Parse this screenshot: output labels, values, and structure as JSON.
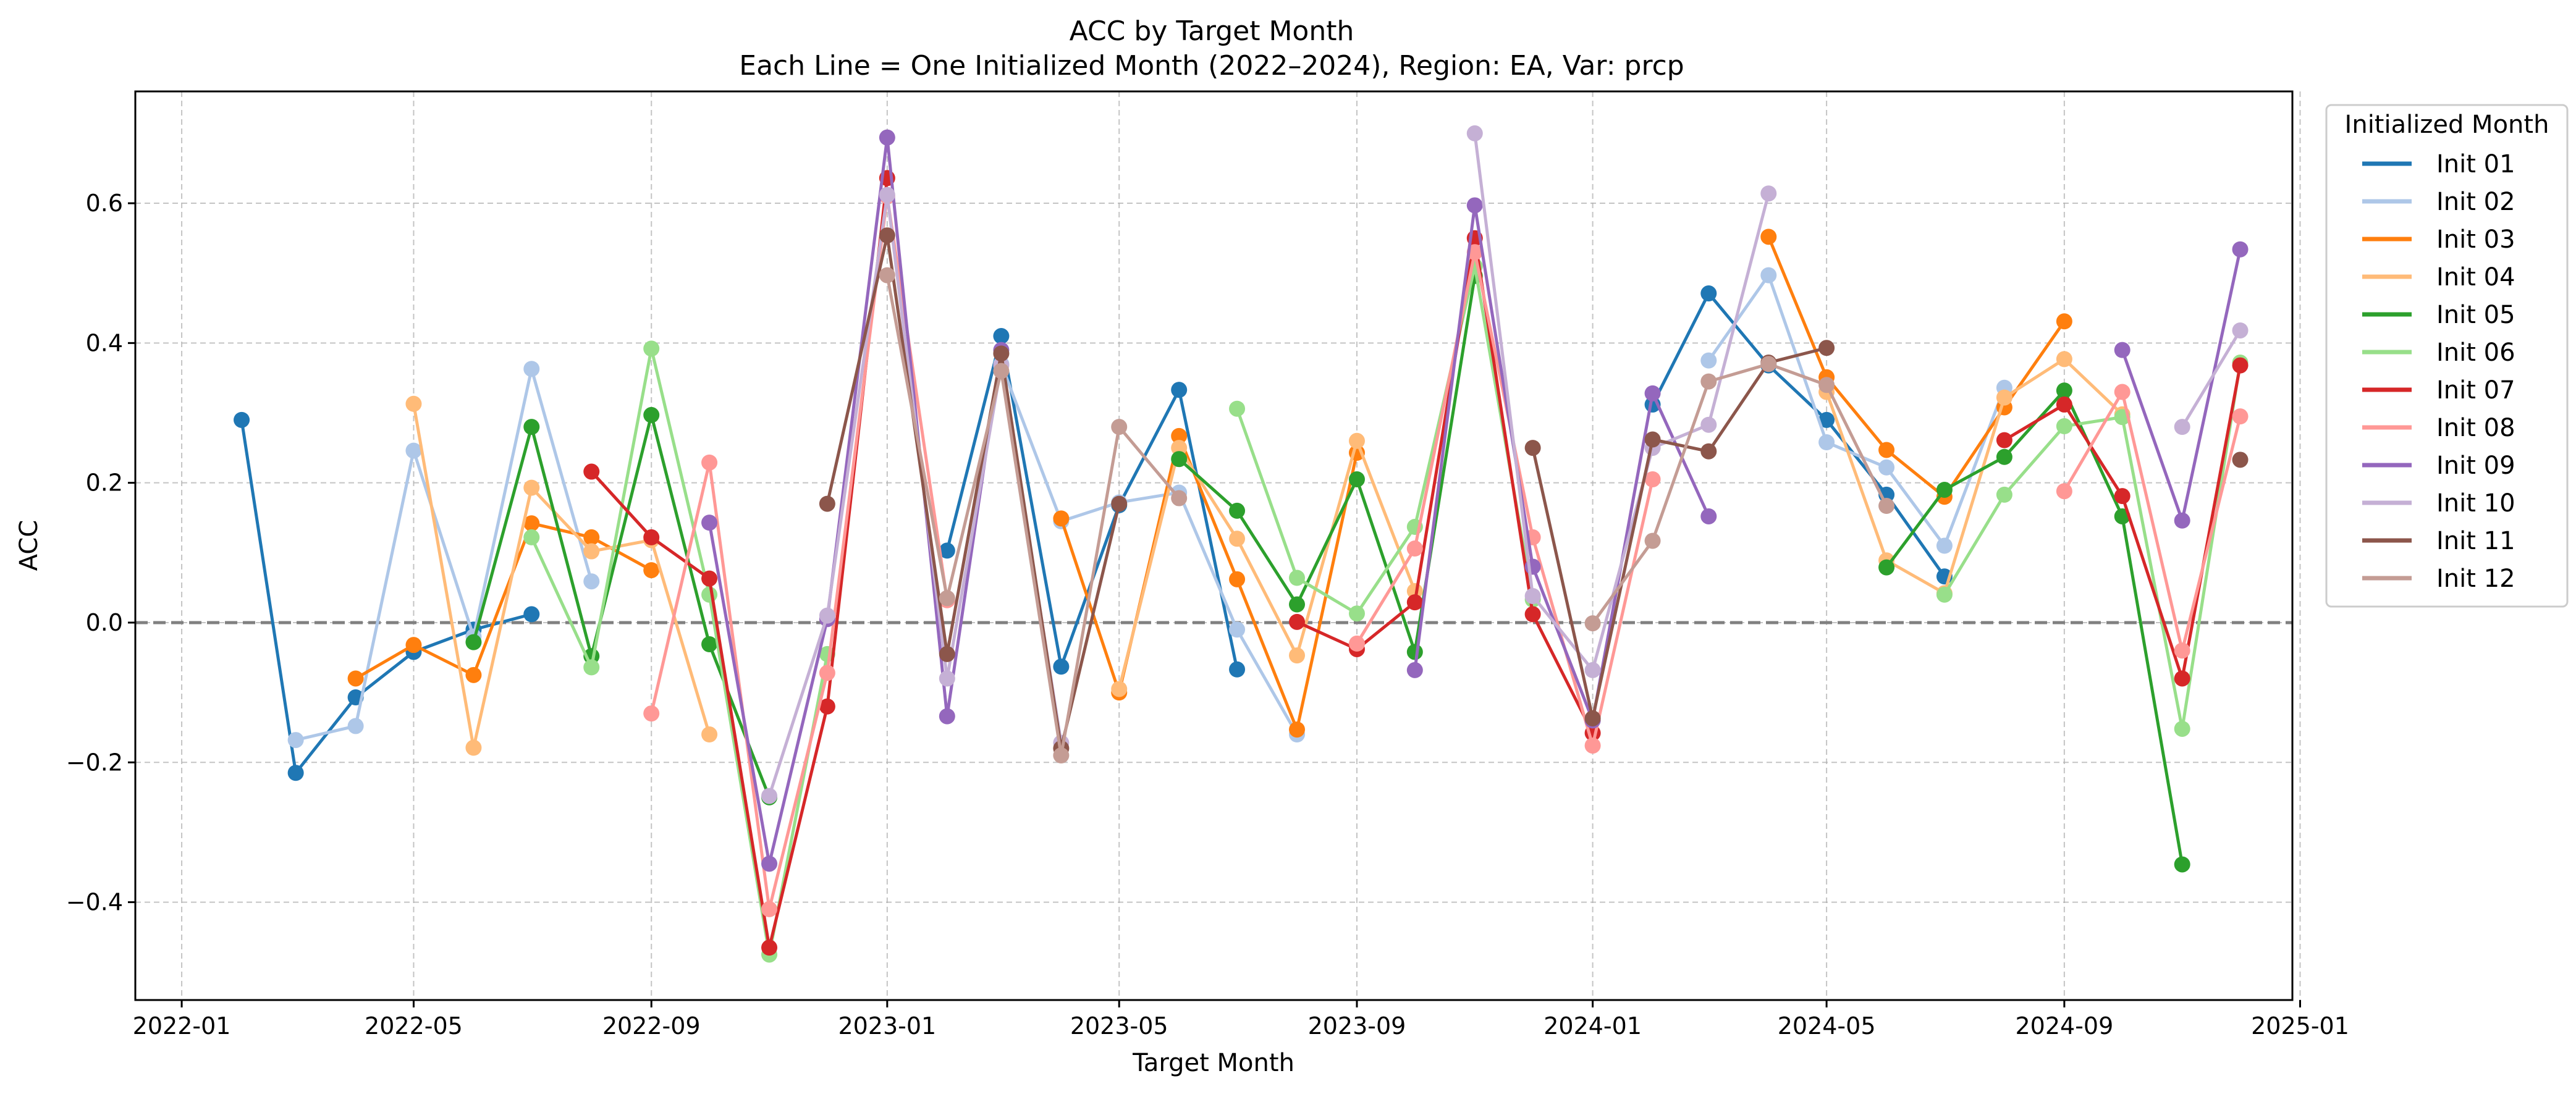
{
  "chart_data": {
    "type": "line",
    "title": "ACC by Target Month",
    "subtitle": "Each Line = One Initialized Month (2022–2024), Region: EA, Var: prcp",
    "xlabel": "Target Month",
    "ylabel": "ACC",
    "x_ticks": [
      "2022-01",
      "2022-05",
      "2022-09",
      "2023-01",
      "2023-05",
      "2023-09",
      "2024-01",
      "2024-05",
      "2024-09",
      "2025-01"
    ],
    "y_ticks": [
      "−0.4",
      "−0.2",
      "0.0",
      "0.2",
      "0.4",
      "0.6"
    ],
    "xlim": [
      "2021-12-08",
      "2024-12-28"
    ],
    "ylim": [
      -0.54,
      0.76
    ],
    "reference_line": 0.0,
    "grid": true,
    "legend_title": "Initialized Month",
    "legend_position": "outside right, top",
    "series": [
      {
        "name": "Init 01",
        "color": "#1f77b4",
        "segments": [
          [
            [
              "2022-02-01",
              0.29
            ],
            [
              "2022-03-01",
              -0.215
            ],
            [
              "2022-04-01",
              -0.107
            ],
            [
              "2022-05-01",
              -0.042
            ],
            [
              "2022-06-01",
              -0.01
            ],
            [
              "2022-07-01",
              0.012
            ]
          ],
          [
            [
              "2023-02-01",
              0.103
            ],
            [
              "2023-03-01",
              0.41
            ],
            [
              "2023-04-01",
              -0.063
            ],
            [
              "2023-05-01",
              0.168
            ],
            [
              "2023-06-01",
              0.333
            ],
            [
              "2023-07-01",
              -0.067
            ]
          ],
          [
            [
              "2024-02-01",
              0.312
            ],
            [
              "2024-03-01",
              0.471
            ],
            [
              "2024-04-01",
              0.368
            ],
            [
              "2024-05-01",
              0.29
            ],
            [
              "2024-06-01",
              0.183
            ],
            [
              "2024-07-01",
              0.066
            ]
          ]
        ]
      },
      {
        "name": "Init 02",
        "color": "#aec7e8",
        "segments": [
          [
            [
              "2022-03-01",
              -0.168
            ],
            [
              "2022-04-01",
              -0.148
            ],
            [
              "2022-05-01",
              0.246
            ],
            [
              "2022-06-01",
              -0.02
            ],
            [
              "2022-07-01",
              0.363
            ],
            [
              "2022-08-01",
              0.059
            ]
          ],
          [
            [
              "2023-03-01",
              0.37
            ],
            [
              "2023-04-01",
              0.145
            ],
            [
              "2023-05-01",
              0.172
            ],
            [
              "2023-06-01",
              0.186
            ],
            [
              "2023-07-01",
              -0.01
            ],
            [
              "2023-08-01",
              -0.16
            ]
          ],
          [
            [
              "2024-03-01",
              0.375
            ],
            [
              "2024-04-01",
              0.497
            ],
            [
              "2024-05-01",
              0.258
            ],
            [
              "2024-06-01",
              0.222
            ],
            [
              "2024-07-01",
              0.11
            ],
            [
              "2024-08-01",
              0.336
            ]
          ]
        ]
      },
      {
        "name": "Init 03",
        "color": "#ff7f0e",
        "segments": [
          [
            [
              "2022-04-01",
              -0.08
            ],
            [
              "2022-05-01",
              -0.032
            ],
            [
              "2022-06-01",
              -0.075
            ],
            [
              "2022-07-01",
              0.142
            ],
            [
              "2022-08-01",
              0.122
            ],
            [
              "2022-09-01",
              0.075
            ]
          ],
          [
            [
              "2023-04-01",
              0.149
            ],
            [
              "2023-05-01",
              -0.1
            ],
            [
              "2023-06-01",
              0.267
            ],
            [
              "2023-07-01",
              0.062
            ],
            [
              "2023-08-01",
              -0.153
            ],
            [
              "2023-09-01",
              0.243
            ]
          ],
          [
            [
              "2024-04-01",
              0.552
            ],
            [
              "2024-05-01",
              0.351
            ],
            [
              "2024-06-01",
              0.247
            ],
            [
              "2024-07-01",
              0.18
            ],
            [
              "2024-08-01",
              0.308
            ],
            [
              "2024-09-01",
              0.431
            ]
          ]
        ]
      },
      {
        "name": "Init 04",
        "color": "#ffbb78",
        "segments": [
          [
            [
              "2022-05-01",
              0.313
            ],
            [
              "2022-06-01",
              -0.179
            ],
            [
              "2022-07-01",
              0.193
            ],
            [
              "2022-08-01",
              0.102
            ],
            [
              "2022-09-01",
              0.118
            ],
            [
              "2022-10-01",
              -0.16
            ]
          ],
          [
            [
              "2023-05-01",
              -0.095
            ],
            [
              "2023-06-01",
              0.25
            ],
            [
              "2023-07-01",
              0.12
            ],
            [
              "2023-08-01",
              -0.047
            ],
            [
              "2023-09-01",
              0.26
            ],
            [
              "2023-10-01",
              0.045
            ]
          ],
          [
            [
              "2024-05-01",
              0.33
            ],
            [
              "2024-06-01",
              0.089
            ],
            [
              "2024-07-01",
              0.042
            ],
            [
              "2024-08-01",
              0.322
            ],
            [
              "2024-09-01",
              0.377
            ],
            [
              "2024-10-01",
              0.298
            ]
          ]
        ]
      },
      {
        "name": "Init 05",
        "color": "#2ca02c",
        "segments": [
          [
            [
              "2022-06-01",
              -0.028
            ],
            [
              "2022-07-01",
              0.28
            ],
            [
              "2022-08-01",
              -0.048
            ],
            [
              "2022-09-01",
              0.297
            ],
            [
              "2022-10-01",
              -0.031
            ],
            [
              "2022-11-01",
              -0.25
            ]
          ],
          [
            [
              "2023-06-01",
              0.234
            ],
            [
              "2023-07-01",
              0.16
            ],
            [
              "2023-08-01",
              0.026
            ],
            [
              "2023-09-01",
              0.205
            ],
            [
              "2023-10-01",
              -0.042
            ],
            [
              "2023-11-01",
              0.496
            ]
          ],
          [
            [
              "2024-06-01",
              0.079
            ],
            [
              "2024-07-01",
              0.19
            ],
            [
              "2024-08-01",
              0.237
            ],
            [
              "2024-09-01",
              0.332
            ],
            [
              "2024-10-01",
              0.152
            ],
            [
              "2024-11-01",
              -0.346
            ]
          ]
        ]
      },
      {
        "name": "Init 06",
        "color": "#98df8a",
        "segments": [
          [
            [
              "2022-07-01",
              0.122
            ],
            [
              "2022-08-01",
              -0.064
            ],
            [
              "2022-09-01",
              0.392
            ],
            [
              "2022-10-01",
              0.04
            ],
            [
              "2022-11-01",
              -0.475
            ],
            [
              "2022-12-01",
              -0.045
            ]
          ],
          [
            [
              "2023-07-01",
              0.306
            ],
            [
              "2023-08-01",
              0.064
            ],
            [
              "2023-09-01",
              0.013
            ],
            [
              "2023-10-01",
              0.137
            ],
            [
              "2023-11-01",
              0.51
            ],
            [
              "2023-12-01",
              0.033
            ]
          ],
          [
            [
              "2024-07-01",
              0.04
            ],
            [
              "2024-08-01",
              0.183
            ],
            [
              "2024-09-01",
              0.281
            ],
            [
              "2024-10-01",
              0.294
            ],
            [
              "2024-11-01",
              -0.152
            ],
            [
              "2024-12-01",
              0.372
            ]
          ]
        ]
      },
      {
        "name": "Init 07",
        "color": "#d62728",
        "segments": [
          [
            [
              "2022-08-01",
              0.216
            ],
            [
              "2022-09-01",
              0.122
            ],
            [
              "2022-10-01",
              0.063
            ],
            [
              "2022-11-01",
              -0.465
            ],
            [
              "2022-12-01",
              -0.12
            ],
            [
              "2023-01-01",
              0.636
            ]
          ],
          [
            [
              "2023-08-01",
              0.001
            ],
            [
              "2023-09-01",
              -0.038
            ],
            [
              "2023-10-01",
              0.029
            ],
            [
              "2023-11-01",
              0.55
            ],
            [
              "2023-12-01",
              0.012
            ],
            [
              "2024-01-01",
              -0.158
            ]
          ],
          [
            [
              "2024-08-01",
              0.261
            ],
            [
              "2024-09-01",
              0.312
            ],
            [
              "2024-10-01",
              0.181
            ],
            [
              "2024-11-01",
              -0.08
            ],
            [
              "2024-12-01",
              0.368
            ]
          ]
        ]
      },
      {
        "name": "Init 08",
        "color": "#ff9896",
        "segments": [
          [
            [
              "2022-09-01",
              -0.13
            ],
            [
              "2022-10-01",
              0.229
            ],
            [
              "2022-11-01",
              -0.41
            ],
            [
              "2022-12-01",
              -0.072
            ],
            [
              "2023-01-01",
              0.61
            ],
            [
              "2023-02-01",
              0.032
            ]
          ],
          [
            [
              "2023-09-01",
              -0.03
            ],
            [
              "2023-10-01",
              0.106
            ],
            [
              "2023-11-01",
              0.53
            ],
            [
              "2023-12-01",
              0.122
            ],
            [
              "2024-01-01",
              -0.176
            ],
            [
              "2024-02-01",
              0.205
            ]
          ],
          [
            [
              "2024-09-01",
              0.188
            ],
            [
              "2024-10-01",
              0.33
            ],
            [
              "2024-11-01",
              -0.04
            ],
            [
              "2024-12-01",
              0.295
            ]
          ]
        ]
      },
      {
        "name": "Init 09",
        "color": "#9467bd",
        "segments": [
          [
            [
              "2022-10-01",
              0.143
            ],
            [
              "2022-11-01",
              -0.345
            ],
            [
              "2022-12-01",
              0.005
            ],
            [
              "2023-01-01",
              0.694
            ],
            [
              "2023-02-01",
              -0.134
            ],
            [
              "2023-03-01",
              0.39
            ]
          ],
          [
            [
              "2023-10-01",
              -0.068
            ],
            [
              "2023-11-01",
              0.597
            ],
            [
              "2023-12-01",
              0.08
            ],
            [
              "2024-01-01",
              -0.14
            ],
            [
              "2024-02-01",
              0.328
            ],
            [
              "2024-03-01",
              0.152
            ]
          ],
          [
            [
              "2024-10-01",
              0.39
            ],
            [
              "2024-11-01",
              0.146
            ],
            [
              "2024-12-01",
              0.534
            ]
          ]
        ]
      },
      {
        "name": "Init 10",
        "color": "#c5b0d5",
        "segments": [
          [
            [
              "2022-11-01",
              -0.248
            ],
            [
              "2022-12-01",
              0.01
            ],
            [
              "2023-01-01",
              0.612
            ],
            [
              "2023-02-01",
              -0.08
            ],
            [
              "2023-03-01",
              0.368
            ],
            [
              "2023-04-01",
              -0.172
            ]
          ],
          [
            [
              "2023-11-01",
              0.7
            ],
            [
              "2023-12-01",
              0.038
            ],
            [
              "2024-01-01",
              -0.068
            ],
            [
              "2024-02-01",
              0.25
            ],
            [
              "2024-03-01",
              0.283
            ],
            [
              "2024-04-01",
              0.614
            ]
          ],
          [
            [
              "2024-11-01",
              0.28
            ],
            [
              "2024-12-01",
              0.418
            ]
          ]
        ]
      },
      {
        "name": "Init 11",
        "color": "#8c564b",
        "segments": [
          [
            [
              "2022-12-01",
              0.17
            ],
            [
              "2023-01-01",
              0.554
            ],
            [
              "2023-02-01",
              -0.045
            ],
            [
              "2023-03-01",
              0.385
            ],
            [
              "2023-04-01",
              -0.18
            ],
            [
              "2023-05-01",
              0.17
            ]
          ],
          [
            [
              "2023-12-01",
              0.25
            ],
            [
              "2024-01-01",
              -0.137
            ],
            [
              "2024-02-01",
              0.262
            ],
            [
              "2024-03-01",
              0.245
            ],
            [
              "2024-04-01",
              0.372
            ],
            [
              "2024-05-01",
              0.393
            ]
          ],
          [
            [
              "2024-12-01",
              0.233
            ]
          ]
        ]
      },
      {
        "name": "Init 12",
        "color": "#c49c94",
        "segments": [
          [
            [
              "2023-01-01",
              0.497
            ],
            [
              "2023-02-01",
              0.035
            ],
            [
              "2023-03-01",
              0.36
            ],
            [
              "2023-04-01",
              -0.19
            ],
            [
              "2023-05-01",
              0.28
            ],
            [
              "2023-06-01",
              0.178
            ]
          ],
          [
            [
              "2024-01-01",
              -0.001
            ],
            [
              "2024-02-01",
              0.117
            ],
            [
              "2024-03-01",
              0.345
            ],
            [
              "2024-04-01",
              0.37
            ],
            [
              "2024-05-01",
              0.34
            ],
            [
              "2024-06-01",
              0.167
            ]
          ]
        ]
      }
    ]
  }
}
